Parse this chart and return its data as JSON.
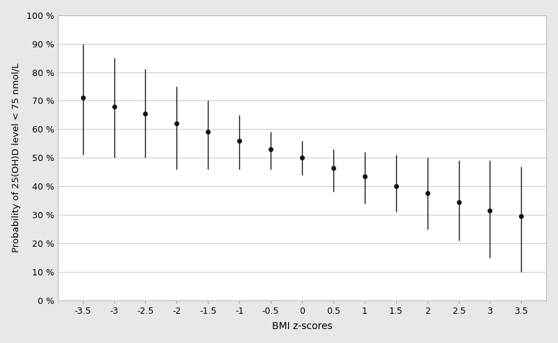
{
  "x": [
    -3.5,
    -3.0,
    -2.5,
    -2.0,
    -1.5,
    -1.0,
    -0.5,
    0.0,
    0.5,
    1.0,
    1.5,
    2.0,
    2.5,
    3.0,
    3.5
  ],
  "y": [
    0.71,
    0.68,
    0.655,
    0.62,
    0.59,
    0.56,
    0.53,
    0.5,
    0.465,
    0.435,
    0.4,
    0.375,
    0.345,
    0.315,
    0.295
  ],
  "y_lower": [
    0.51,
    0.5,
    0.5,
    0.46,
    0.46,
    0.46,
    0.46,
    0.44,
    0.38,
    0.34,
    0.31,
    0.25,
    0.21,
    0.15,
    0.1
  ],
  "y_upper": [
    0.9,
    0.85,
    0.81,
    0.75,
    0.7,
    0.65,
    0.59,
    0.56,
    0.53,
    0.52,
    0.51,
    0.5,
    0.49,
    0.49,
    0.47
  ],
  "xlabel": "BMI z-scores",
  "ylabel": "Probability of 25(OH)D level < 75 nmol/L",
  "xlim": [
    -3.9,
    3.9
  ],
  "ylim": [
    0.0,
    1.0
  ],
  "xticks": [
    -3.5,
    -3.0,
    -2.5,
    -2.0,
    -1.5,
    -1.0,
    -0.5,
    0.0,
    0.5,
    1.0,
    1.5,
    2.0,
    2.5,
    3.0,
    3.5
  ],
  "yticks": [
    0.0,
    0.1,
    0.2,
    0.3,
    0.4,
    0.5,
    0.6,
    0.7,
    0.8,
    0.9,
    1.0
  ],
  "ytick_labels": [
    "0 %",
    "10 %",
    "20 %",
    "30 %",
    "40 %",
    "50 %",
    "60 %",
    "70 %",
    "80 %",
    "90 %",
    "100 %"
  ],
  "background_color": "#e8e8e8",
  "plot_bg_color": "#ffffff",
  "marker_color": "#111111",
  "line_color": "#111111",
  "grid_color": "#cccccc",
  "marker_size": 4.5,
  "line_width": 1.0,
  "capsize": 0
}
